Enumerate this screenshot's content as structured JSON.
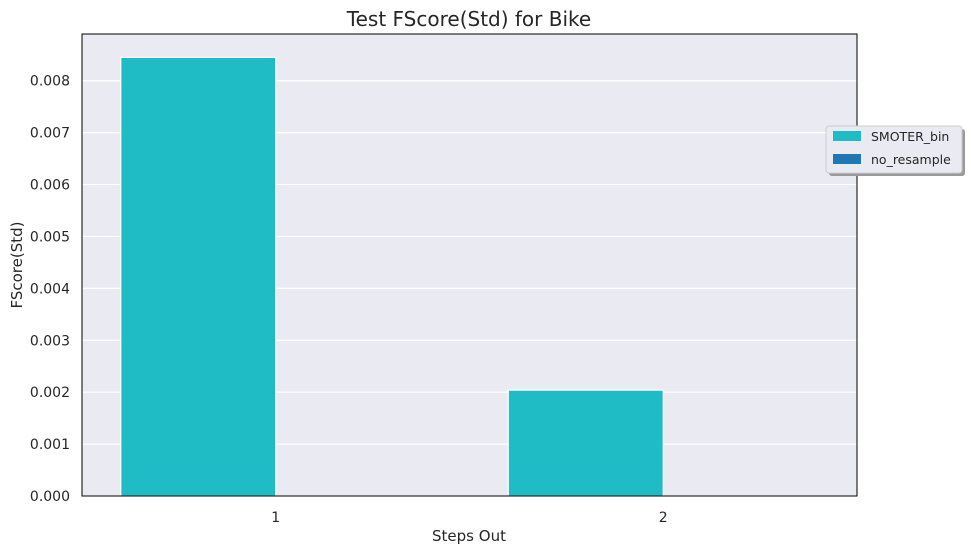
{
  "chart_data": {
    "type": "bar",
    "title": "Test FScore(Std) for Bike",
    "xlabel": "Steps Out",
    "ylabel": "FScore(Std)",
    "categories": [
      "1",
      "2"
    ],
    "series": [
      {
        "name": "SMOTER_bin",
        "color": "#1fbcc6",
        "values": [
          0.00845,
          0.00204
        ]
      },
      {
        "name": "no_resample",
        "color": "#1f77b4",
        "values": [
          0.0,
          0.0
        ]
      }
    ],
    "ylim": [
      0,
      0.0089
    ],
    "yticks": [
      "0.000",
      "0.001",
      "0.002",
      "0.003",
      "0.004",
      "0.005",
      "0.006",
      "0.007",
      "0.008"
    ],
    "grid": true,
    "legend_position": "right"
  }
}
